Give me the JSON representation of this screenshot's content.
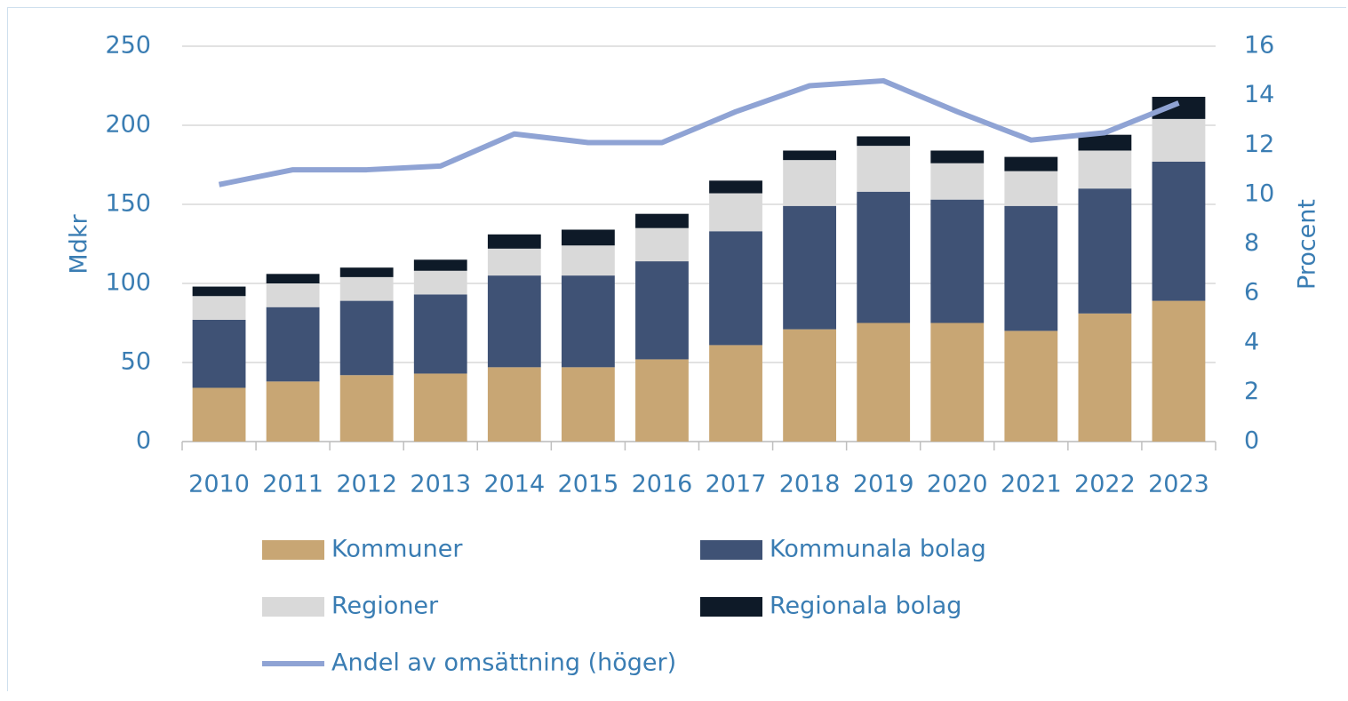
{
  "chart_data": {
    "type": "bar",
    "categories": [
      "2010",
      "2011",
      "2012",
      "2013",
      "2014",
      "2015",
      "2016",
      "2017",
      "2018",
      "2019",
      "2020",
      "2021",
      "2022",
      "2023"
    ],
    "ylabel": "Mdkr",
    "y2label": "Procent",
    "ylim": [
      0,
      250
    ],
    "yticks": [
      0,
      50,
      100,
      150,
      200,
      250
    ],
    "y2lim": [
      0,
      16
    ],
    "y2ticks": [
      0,
      2,
      4,
      6,
      8,
      10,
      12,
      14,
      16
    ],
    "grid": true,
    "stacked": true,
    "series": [
      {
        "name": "Kommuner",
        "color": "#c8a674",
        "values": [
          34,
          38,
          42,
          43,
          47,
          47,
          52,
          61,
          71,
          75,
          75,
          70,
          81,
          89
        ]
      },
      {
        "name": "Kommunala bolag",
        "color": "#3f5275",
        "values": [
          43,
          47,
          47,
          50,
          58,
          58,
          62,
          72,
          78,
          83,
          78,
          79,
          79,
          88
        ]
      },
      {
        "name": "Regioner",
        "color": "#d9d9d9",
        "values": [
          15,
          15,
          15,
          15,
          17,
          19,
          21,
          24,
          29,
          29,
          23,
          22,
          24,
          27
        ]
      },
      {
        "name": "Regionala bolag",
        "color": "#0e1a28",
        "values": [
          6,
          6,
          6,
          7,
          9,
          10,
          9,
          8,
          6,
          6,
          8,
          9,
          10,
          14
        ]
      },
      {
        "name": "Andel av omsättning (höger)",
        "color": "#8fa3d4",
        "type": "line",
        "axis": "y2",
        "values": [
          10.4,
          11.0,
          11.0,
          11.15,
          12.45,
          12.1,
          12.1,
          13.35,
          14.4,
          14.6,
          13.35,
          12.2,
          12.5,
          13.7
        ]
      }
    ]
  }
}
